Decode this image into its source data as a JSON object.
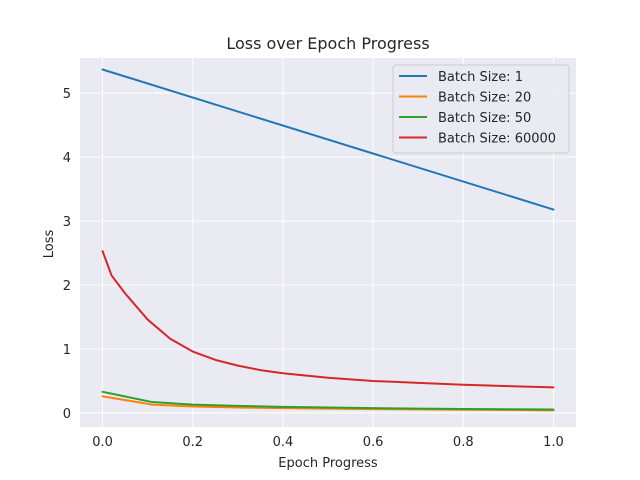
{
  "chart_data": {
    "type": "line",
    "title": "Loss over Epoch Progress",
    "xlabel": "Epoch Progress",
    "ylabel": "Loss",
    "xlim": [
      -0.05,
      1.05
    ],
    "ylim": [
      -0.22,
      5.55
    ],
    "xticks": [
      0.0,
      0.2,
      0.4,
      0.6,
      0.8,
      1.0
    ],
    "xtick_labels": [
      "0.0",
      "0.2",
      "0.4",
      "0.6",
      "0.8",
      "1.0"
    ],
    "yticks": [
      0,
      1,
      2,
      3,
      4,
      5
    ],
    "ytick_labels": [
      "0",
      "1",
      "2",
      "3",
      "4",
      "5"
    ],
    "grid": true,
    "legend_position": "top-right",
    "background": "#eaeaf2",
    "series": [
      {
        "name": "Batch Size: 1",
        "color": "#1f77b4",
        "x": [
          0.0,
          1.0
        ],
        "y": [
          5.37,
          3.18
        ]
      },
      {
        "name": "Batch Size: 20",
        "color": "#ff7f0e",
        "x": [
          0.0,
          0.11,
          0.2,
          0.3,
          0.4,
          0.5,
          0.6,
          0.7,
          0.8,
          0.9,
          1.0
        ],
        "y": [
          0.26,
          0.13,
          0.1,
          0.085,
          0.075,
          0.068,
          0.06,
          0.055,
          0.05,
          0.045,
          0.04
        ]
      },
      {
        "name": "Batch Size: 50",
        "color": "#2ca02c",
        "x": [
          0.0,
          0.11,
          0.2,
          0.3,
          0.4,
          0.5,
          0.6,
          0.7,
          0.8,
          0.9,
          1.0
        ],
        "y": [
          0.33,
          0.17,
          0.13,
          0.11,
          0.095,
          0.085,
          0.075,
          0.068,
          0.062,
          0.057,
          0.053
        ]
      },
      {
        "name": "Batch Size: 60000",
        "color": "#d62728",
        "x": [
          0.0,
          0.02,
          0.05,
          0.1,
          0.15,
          0.2,
          0.25,
          0.3,
          0.35,
          0.4,
          0.5,
          0.6,
          0.7,
          0.8,
          0.9,
          1.0
        ],
        "y": [
          2.53,
          2.15,
          1.87,
          1.46,
          1.16,
          0.96,
          0.83,
          0.74,
          0.67,
          0.62,
          0.55,
          0.5,
          0.47,
          0.44,
          0.42,
          0.4
        ]
      }
    ]
  }
}
